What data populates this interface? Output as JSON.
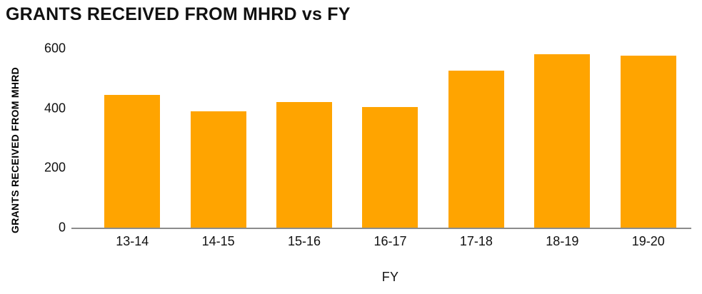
{
  "chart_data": {
    "type": "bar",
    "title": "GRANTS RECEIVED FROM MHRD vs FY",
    "categories": [
      "13-14",
      "14-15",
      "15-16",
      "16-17",
      "17-18",
      "18-19",
      "19-20"
    ],
    "values": [
      445,
      390,
      420,
      405,
      525,
      580,
      575
    ],
    "xlabel": "FY",
    "ylabel": "GRANTS RECEIVED FROM MHRD",
    "ylim": [
      0,
      600
    ],
    "yticks": [
      0,
      200,
      400,
      600
    ],
    "grid": false,
    "legend": false,
    "bar_color": "#FFA400",
    "axis_color": "#8C8C8C",
    "text_color": "#111111",
    "background_color": "#FFFFFF"
  }
}
